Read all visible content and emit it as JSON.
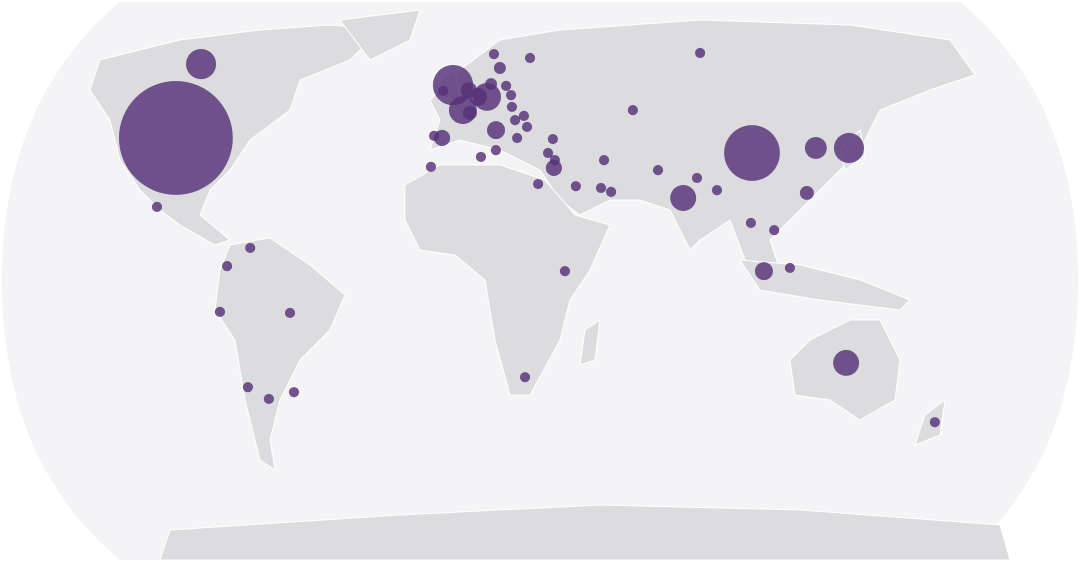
{
  "chart_data": {
    "type": "bubble-map",
    "color": "#553278",
    "lon": [
      -95.0,
      -96.7,
      -95.9,
      -64.3,
      -71.6,
      -74.3,
      -51.6,
      -68.3,
      -61.9,
      -52.9,
      1.5,
      5.0,
      14.0,
      10.7,
      16.5,
      -2.4,
      -5.2,
      -6.1,
      10.9,
      16.1,
      17.9,
      32.0,
      19.7,
      15.8,
      21.4,
      22.9,
      22.8,
      26.8,
      23.5,
      27.5,
      23.7,
      7.4,
      7.5,
      36.1,
      33.9,
      36.0,
      35.4,
      29.7,
      42.2,
      52.7,
      50.5,
      53.7,
      66.3,
      100.2,
      70.4,
      77.3,
      83.0,
      88.9,
      103.7,
      126.2,
      137.6,
      118.5,
      98.4,
      105.7,
      101.6,
      110.0,
      37.4,
      25.6,
      132.2,
      171.5,
      -2.2
    ],
    "lat": [
      38.1,
      58.8,
      18.8,
      7.3,
      2.2,
      -10.6,
      -10.9,
      -31.7,
      -35.0,
      -33.1,
      52.9,
      45.9,
      49.6,
      49.6,
      40.3,
      38.1,
      38.7,
      30.0,
      32.8,
      34.7,
      61.6,
      60.5,
      57.7,
      53.2,
      52.7,
      50.1,
      46.8,
      44.3,
      43.1,
      41.2,
      38.1,
      51.5,
      45.1,
      37.8,
      33.9,
      31.9,
      29.7,
      25.2,
      24.6,
      31.9,
      24.1,
      23.0,
      45.9,
      61.9,
      29.1,
      21.3,
      26.9,
      23.5,
      33.9,
      35.3,
      35.3,
      22.7,
      14.3,
      12.3,
      0.8,
      1.7,
      0.8,
      -28.9,
      -24.9,
      -41.5,
      51.3
    ],
    "values": [
      1000,
      70,
      8,
      8,
      8,
      8,
      8,
      8,
      8,
      8,
      125,
      60,
      60,
      25,
      25,
      20,
      8,
      8,
      8,
      8,
      8,
      8,
      11,
      11,
      8,
      8,
      8,
      8,
      8,
      8,
      8,
      20,
      15,
      8,
      8,
      8,
      20,
      8,
      8,
      8,
      8,
      8,
      8,
      8,
      8,
      52,
      8,
      8,
      240,
      37,
      70,
      15,
      8,
      8,
      25,
      8,
      8,
      8,
      52,
      8,
      8
    ]
  }
}
